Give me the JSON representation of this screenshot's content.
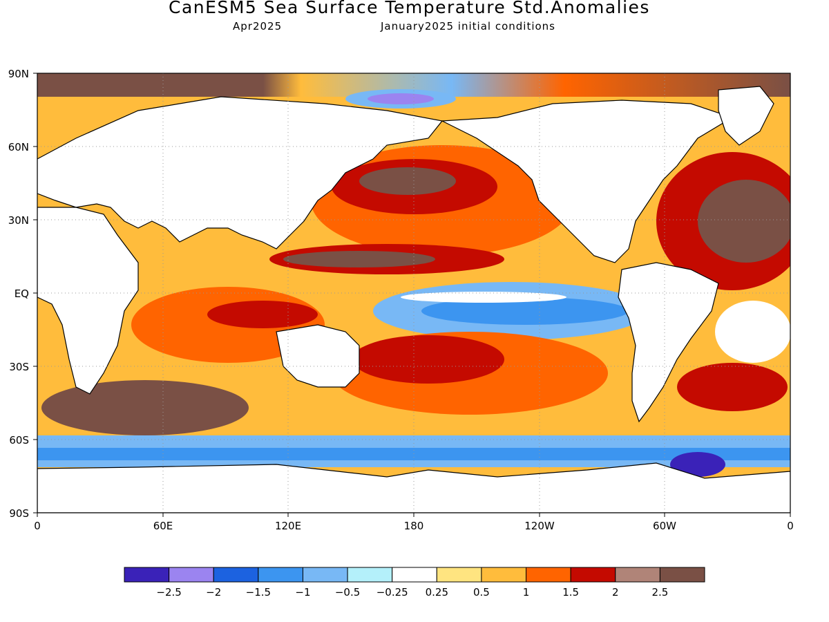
{
  "header": {
    "title": "CanESM5 Sea Surface Temperature Std.Anomalies",
    "valid_month": "Apr2025",
    "init_conditions": "January2025 initial conditions"
  },
  "map": {
    "lat_labels": [
      "90N",
      "60N",
      "30N",
      "EQ",
      "30S",
      "60S",
      "90S"
    ],
    "lon_labels": [
      "0",
      "60E",
      "120E",
      "180",
      "120W",
      "60W",
      "0"
    ],
    "land_color": "#ffffff",
    "grid": "dotted"
  },
  "colorbar": {
    "colors": [
      "#3a22b8",
      "#9b84f0",
      "#1c62e0",
      "#3c95f0",
      "#78b8f5",
      "#b4f0fa",
      "#ffffff",
      "#ffe480",
      "#ffbc3c",
      "#ff6400",
      "#c40a00",
      "#b08478",
      "#7a5045"
    ],
    "labels": [
      "−2.5",
      "−2",
      "−1.5",
      "−1",
      "−0.5",
      "−0.25",
      "0.25",
      "0.5",
      "1",
      "1.5",
      "2",
      "2.5"
    ]
  }
}
